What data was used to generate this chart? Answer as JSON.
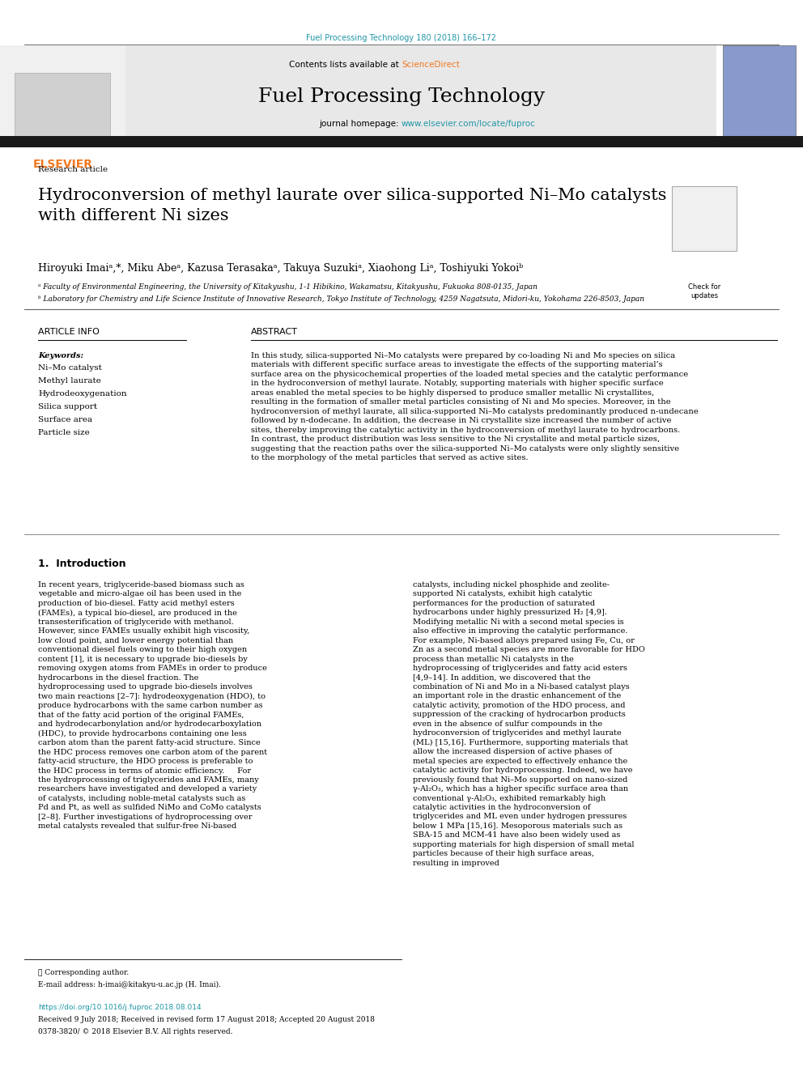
{
  "page_width": 9.92,
  "page_height": 13.23,
  "bg_color": "#ffffff",
  "top_citation": "Fuel Processing Technology 180 (2018) 166–172",
  "top_citation_color": "#2196a8",
  "journal_header_bg": "#e8e8e8",
  "contents_text": "Contents lists available at ",
  "science_direct": "ScienceDirect",
  "science_direct_color": "#f07820",
  "journal_name": "Fuel Processing Technology",
  "journal_homepage_text": "journal homepage: ",
  "journal_url": "www.elsevier.com/locate/fuproc",
  "journal_url_color": "#2196a8",
  "black_bar_color": "#1a1a1a",
  "research_article_text": "Research article",
  "title_text": "Hydroconversion of methyl laurate over silica-supported Ni–Mo catalysts\nwith different Ni sizes",
  "authors": "Hiroyuki Imaiᵃ,*, Miku Abeᵃ, Kazusa Terasakaᵃ, Takuya Suzukiᵃ, Xiaohong Liᵃ, Toshiyuki Yokoiᵇ",
  "affiliation_a": "ᵃ Faculty of Environmental Engineering, the University of Kitakyushu, 1-1 Hibikino, Wakamatsu, Kitakyushu, Fukuoka 808-0135, Japan",
  "affiliation_b": "ᵇ Laboratory for Chemistry and Life Science Institute of Innovative Research, Tokyo Institute of Technology, 4259 Nagatsuta, Midori-ku, Yokohama 226-8503, Japan",
  "article_info_title": "ARTICLE INFO",
  "keywords_title": "Keywords:",
  "keywords": [
    "Ni–Mo catalyst",
    "Methyl laurate",
    "Hydrodeoxygenation",
    "Silica support",
    "Surface area",
    "Particle size"
  ],
  "abstract_title": "ABSTRACT",
  "abstract_text": "In this study, silica-supported Ni–Mo catalysts were prepared by co-loading Ni and Mo species on silica materials with different specific surface areas to investigate the effects of the supporting material’s surface area on the physicochemical properties of the loaded metal species and the catalytic performance in the hydroconversion of methyl laurate. Notably, supporting materials with higher specific surface areas enabled the metal species to be highly dispersed to produce smaller metallic Ni crystallites, resulting in the formation of smaller metal particles consisting of Ni and Mo species. Moreover, in the hydroconversion of methyl laurate, all silica-supported Ni–Mo catalysts predominantly produced n-undecane followed by n-dodecane. In addition, the decrease in Ni crystallite size increased the number of active sites, thereby improving the catalytic activity in the hydroconversion of methyl laurate to hydrocarbons. In contrast, the product distribution was less sensitive to the Ni crystallite and metal particle sizes, suggesting that the reaction paths over the silica-supported Ni–Mo catalysts were only slightly sensitive to the morphology of the metal particles that served as active sites.",
  "intro_title": "1.  Introduction",
  "intro_col1": "In recent years, triglyceride-based biomass such as vegetable and micro-algae oil has been used in the production of bio-diesel. Fatty acid methyl esters (FAMEs), a typical bio-diesel, are produced in the transesterification of triglyceride with methanol. However, since FAMEs usually exhibit high viscosity, low cloud point, and lower energy potential than conventional diesel fuels owing to their high oxygen content [1], it is necessary to upgrade bio-diesels by removing oxygen atoms from FAMEs in order to produce hydrocarbons in the diesel fraction. The hydroprocessing used to upgrade bio-diesels involves two main reactions [2–7]: hydrodeoxygenation (HDO), to produce hydrocarbons with the same carbon number as that of the fatty acid portion of the original FAMEs, and hydrodecarbonylation and/or hydrodecarboxylation (HDC), to provide hydrocarbons containing one less carbon atom than the parent fatty-acid structure. Since the HDC process removes one carbon atom of the parent fatty-acid structure, the HDO process is preferable to the HDC process in terms of atomic efficiency.\n    For the hydroprocessing of triglycerides and FAMEs, many researchers have investigated and developed a variety of catalysts, including noble-metal catalysts such as Pd and Pt, as well as sulfided NiMo and CoMo catalysts [2–8]. Further investigations of hydroprocessing over metal catalysts revealed that sulfur-free Ni-based",
  "intro_col2": "catalysts, including nickel phosphide and zeolite-supported Ni catalysts, exhibit high catalytic performances for the production of saturated hydrocarbons under highly pressurized H₂ [4,9]. Modifying metallic Ni with a second metal species is also effective in improving the catalytic performance. For example, Ni-based alloys prepared using Fe, Cu, or Zn as a second metal species are more favorable for HDO process than metallic Ni catalysts in the hydroprocessing of triglycerides and fatty acid esters [4,9–14]. In addition, we discovered that the combination of Ni and Mo in a Ni-based catalyst plays an important role in the drastic enhancement of the catalytic activity, promotion of the HDO process, and suppression of the cracking of hydrocarbon products even in the absence of sulfur compounds in the hydroconversion of triglycerides and methyl laurate (ML) [15,16]. Furthermore, supporting materials that allow the increased dispersion of active phases of metal species are expected to effectively enhance the catalytic activity for hydroprocessing. Indeed, we have previously found that Ni–Mo supported on nano-sized γ-Al₂O₃, which has a higher specific surface area than conventional γ-Al₂O₃, exhibited remarkably high catalytic activities in the hydroconversion of triglycerides and ML even under hydrogen pressures below 1 MPa [15,16]. Mesoporous materials such as SBA-15 and MCM-41 have also been widely used as supporting materials for high dispersion of small metal particles because of their high surface areas, resulting in improved",
  "footer_text": "★ Corresponding author.",
  "email_text": "E-mail address: h-imai@kitakyu-u.ac.jp (H. Imai).",
  "doi_text": "https://doi.org/10.1016/j.fuproc.2018.08.014",
  "doi_color": "#2196a8",
  "received_text": "Received 9 July 2018; Received in revised form 17 August 2018; Accepted 20 August 2018",
  "copyright_text": "0378-3820/ © 2018 Elsevier B.V. All rights reserved."
}
